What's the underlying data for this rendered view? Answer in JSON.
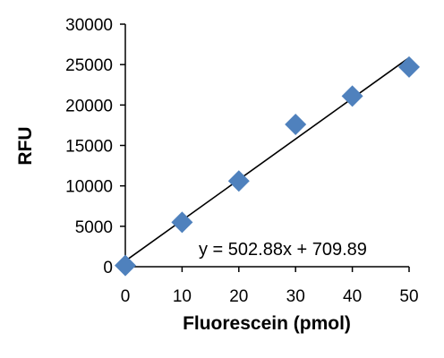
{
  "chart_data": {
    "type": "scatter",
    "xlabel": "Fluorescein (pmol)",
    "ylabel": "RFU",
    "xlim": [
      0,
      50
    ],
    "ylim": [
      0,
      30000
    ],
    "xticks": [
      0,
      10,
      20,
      30,
      40,
      50
    ],
    "yticks": [
      0,
      5000,
      10000,
      15000,
      20000,
      25000,
      30000
    ],
    "grid": false,
    "legend": "none",
    "marker": "diamond",
    "marker_color": "#4f81bd",
    "series": [
      {
        "x": [
          0,
          10,
          20,
          30,
          40,
          50
        ],
        "y": [
          150,
          5500,
          10600,
          17600,
          21100,
          24700
        ]
      }
    ],
    "trendline": {
      "type": "linear",
      "slope": 502.88,
      "intercept": 709.89,
      "label": "y = 502.88x + 709.89",
      "color": "#000000"
    }
  }
}
